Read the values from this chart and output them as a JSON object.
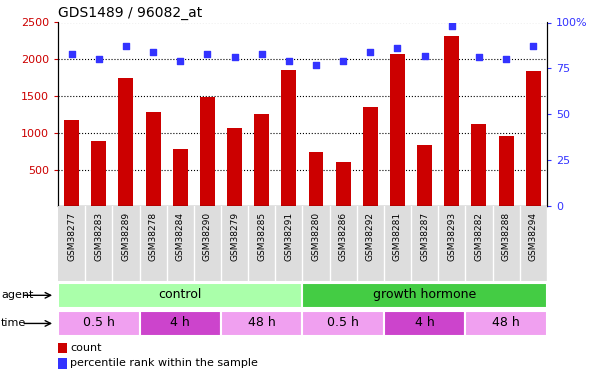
{
  "title": "GDS1489 / 96082_at",
  "samples": [
    "GSM38277",
    "GSM38283",
    "GSM38289",
    "GSM38278",
    "GSM38284",
    "GSM38290",
    "GSM38279",
    "GSM38285",
    "GSM38291",
    "GSM38280",
    "GSM38286",
    "GSM38292",
    "GSM38281",
    "GSM38287",
    "GSM38293",
    "GSM38282",
    "GSM38288",
    "GSM38294"
  ],
  "counts": [
    1170,
    890,
    1750,
    1285,
    785,
    1490,
    1070,
    1250,
    1860,
    740,
    600,
    1350,
    2070,
    840,
    2320,
    1115,
    960,
    1840
  ],
  "percentiles": [
    83,
    80,
    87,
    84,
    79,
    83,
    81,
    83,
    79,
    77,
    79,
    84,
    86,
    82,
    98,
    81,
    80,
    87
  ],
  "bar_color": "#cc0000",
  "dot_color": "#3333ff",
  "ylim_left": [
    0,
    2500
  ],
  "ylim_right": [
    0,
    100
  ],
  "yticks_left": [
    500,
    1000,
    1500,
    2000,
    2500
  ],
  "yticks_right": [
    0,
    25,
    50,
    75,
    100
  ],
  "ytick_labels_right": [
    "0",
    "25",
    "50",
    "75",
    "100%"
  ],
  "agent_groups": [
    {
      "label": "control",
      "start": 0,
      "end": 9,
      "color": "#aaffaa"
    },
    {
      "label": "growth hormone",
      "start": 9,
      "end": 18,
      "color": "#44cc44"
    }
  ],
  "time_groups": [
    {
      "label": "0.5 h",
      "start": 0,
      "end": 3,
      "color": "#f0a0f0"
    },
    {
      "label": "4 h",
      "start": 3,
      "end": 6,
      "color": "#cc44cc"
    },
    {
      "label": "48 h",
      "start": 6,
      "end": 9,
      "color": "#f0a0f0"
    },
    {
      "label": "0.5 h",
      "start": 9,
      "end": 12,
      "color": "#f0a0f0"
    },
    {
      "label": "4 h",
      "start": 12,
      "end": 15,
      "color": "#cc44cc"
    },
    {
      "label": "48 h",
      "start": 15,
      "end": 18,
      "color": "#f0a0f0"
    }
  ],
  "legend_count_color": "#cc0000",
  "legend_dot_color": "#3333ff",
  "background_color": "#ffffff",
  "tick_label_color_left": "#cc0000",
  "tick_label_color_right": "#3333ff",
  "grid_color": "black",
  "bar_width": 0.55,
  "xtick_bg": "#dddddd"
}
